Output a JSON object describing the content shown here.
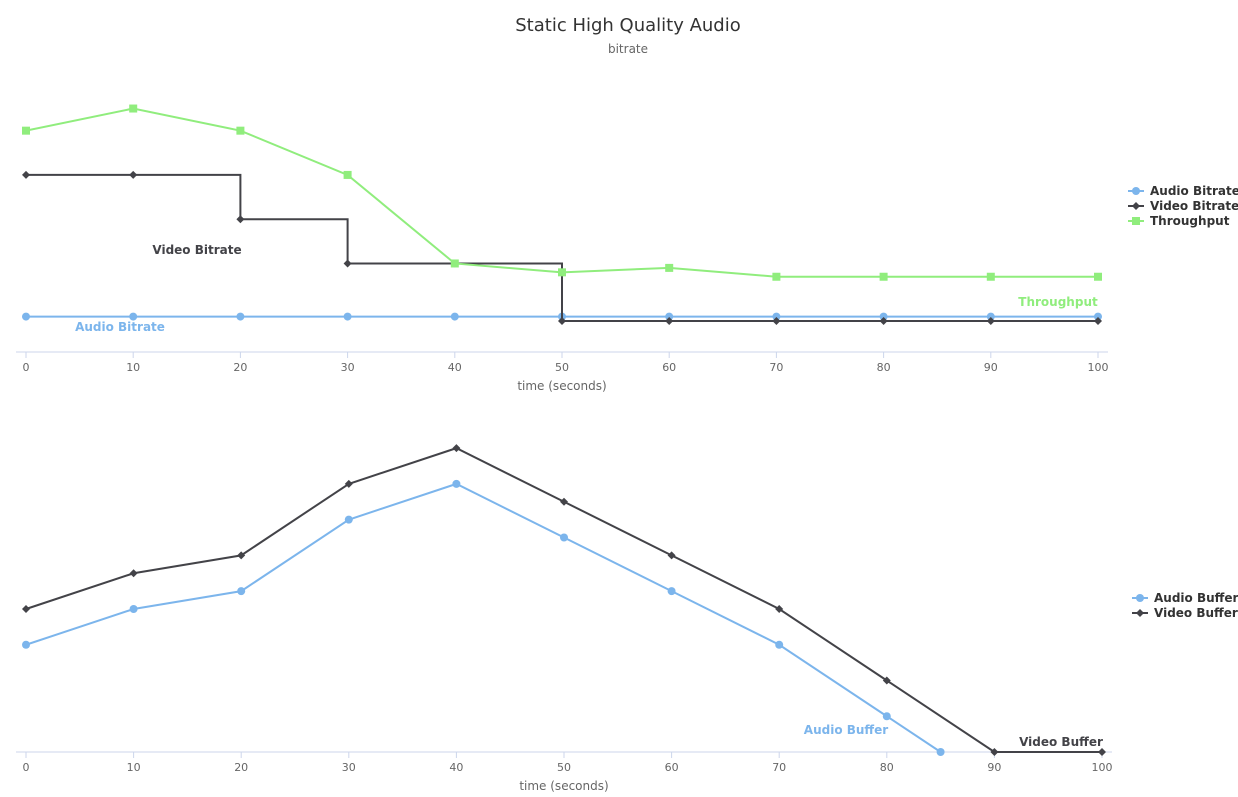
{
  "title": "Static High Quality Audio",
  "subtitle": "bitrate",
  "colors": {
    "audio": "#7cb5ec",
    "video": "#434348",
    "throughput": "#90ed7d",
    "axis": "#ccd6eb"
  },
  "chart_data": [
    {
      "type": "line",
      "xlabel": "time (seconds)",
      "ylabel": "",
      "xlim": [
        0,
        100
      ],
      "ylim": [
        0,
        1500
      ],
      "x_ticks": [
        "0",
        "10",
        "20",
        "30",
        "40",
        "50",
        "60",
        "70",
        "80",
        "90",
        "100"
      ],
      "grid": false,
      "legend_position": "right",
      "series": [
        {
          "name": "Audio Bitrate",
          "key": "audio",
          "marker": "circle",
          "step": false,
          "label": "Audio Bitrate",
          "x": [
            0,
            10,
            20,
            30,
            40,
            50,
            60,
            70,
            80,
            90,
            100
          ],
          "y": [
            160,
            160,
            160,
            160,
            160,
            160,
            160,
            160,
            160,
            160,
            160
          ]
        },
        {
          "name": "Video Bitrate",
          "key": "video",
          "marker": "diamond",
          "step": true,
          "label": "Video Bitrate",
          "x": [
            0,
            10,
            20,
            30,
            40,
            50,
            60,
            70,
            80,
            90,
            100
          ],
          "y": [
            800,
            800,
            600,
            400,
            400,
            140,
            140,
            140,
            140,
            140,
            140
          ]
        },
        {
          "name": "Throughput",
          "key": "throughput",
          "marker": "square",
          "step": false,
          "label": "Throughput",
          "x": [
            0,
            10,
            20,
            30,
            40,
            50,
            60,
            70,
            80,
            90,
            100
          ],
          "y": [
            1000,
            1100,
            1000,
            800,
            400,
            360,
            380,
            340,
            340,
            340,
            340
          ]
        }
      ]
    },
    {
      "type": "line",
      "xlabel": "time (seconds)",
      "ylabel": "",
      "xlim": [
        0,
        100
      ],
      "ylim": [
        0,
        16
      ],
      "x_ticks": [
        "0",
        "10",
        "20",
        "30",
        "40",
        "50",
        "60",
        "70",
        "80",
        "90",
        "100"
      ],
      "grid": false,
      "legend_position": "right",
      "series": [
        {
          "name": "Audio Buffer",
          "key": "audio",
          "marker": "circle",
          "step": false,
          "label": "Audio Buffer",
          "x": [
            0,
            10,
            20,
            30,
            40,
            50,
            60,
            70,
            80,
            85
          ],
          "y": [
            6,
            8,
            9,
            13,
            15,
            12,
            9,
            6,
            2,
            0
          ]
        },
        {
          "name": "Video Buffer",
          "key": "video",
          "marker": "diamond",
          "step": false,
          "label": "Video Buffer",
          "x": [
            0,
            10,
            20,
            30,
            40,
            50,
            60,
            70,
            80,
            90,
            100
          ],
          "y": [
            8,
            10,
            11,
            15,
            17,
            14,
            11,
            8,
            4,
            0,
            0
          ]
        }
      ]
    }
  ]
}
